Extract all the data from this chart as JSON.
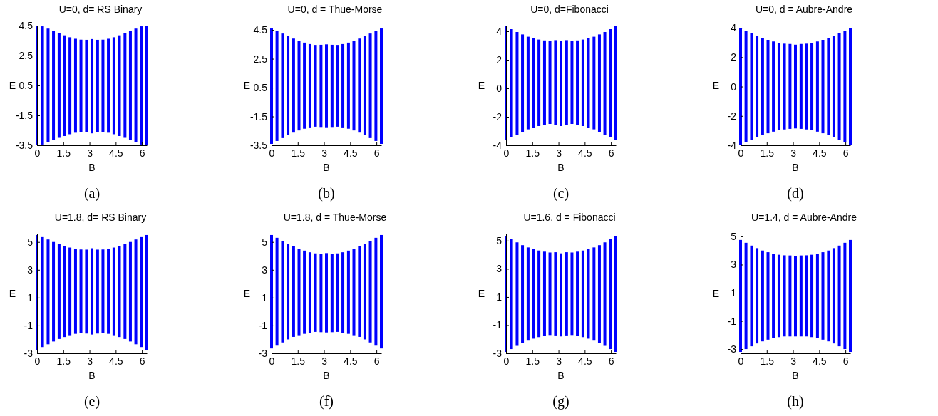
{
  "chart_data": [
    {
      "type": "bar",
      "title": "U=0, d= RS Binary",
      "xlabel": "B",
      "ylabel": "E",
      "annotations": [
        "(a)"
      ],
      "x": [
        0,
        0.31,
        0.63,
        0.94,
        1.26,
        1.57,
        1.88,
        2.2,
        2.51,
        2.83,
        3.14,
        3.46,
        3.77,
        4.08,
        4.4,
        4.71,
        5.03,
        5.34,
        5.65,
        5.97,
        6.28
      ],
      "xlim": [
        0,
        6.28
      ],
      "xticks": [
        0,
        1.5,
        3,
        4.5,
        6
      ],
      "ylim": [
        -3.5,
        4.5
      ],
      "yticks": [
        -3.5,
        -1.5,
        0.5,
        2.5,
        4.5
      ],
      "series": [
        {
          "color": "#0000ff",
          "values": [
            8.0,
            7.9,
            7.6,
            7.3,
            7.0,
            6.73,
            6.48,
            6.28,
            6.16,
            6.17,
            6.3,
            6.17,
            6.16,
            6.28,
            6.48,
            6.73,
            7.0,
            7.3,
            7.6,
            7.9,
            8.0
          ],
          "base": [
            -3.5,
            -3.45,
            -3.3,
            -3.15,
            -3.0,
            -2.88,
            -2.76,
            -2.66,
            -2.6,
            -2.62,
            -2.7,
            -2.62,
            -2.6,
            -2.66,
            -2.76,
            -2.88,
            -3.0,
            -3.15,
            -3.3,
            -3.45,
            -3.5
          ]
        }
      ]
    },
    {
      "type": "bar",
      "title": "U=0, d = Thue-Morse",
      "xlabel": "B",
      "ylabel": "E",
      "annotations": [
        "(b)"
      ],
      "x": [
        0,
        0.31,
        0.63,
        0.94,
        1.26,
        1.57,
        1.88,
        2.2,
        2.51,
        2.83,
        3.14,
        3.46,
        3.77,
        4.08,
        4.4,
        4.71,
        5.03,
        5.34,
        5.65,
        5.97,
        6.28
      ],
      "xlim": [
        0,
        6.28
      ],
      "xticks": [
        0,
        1.5,
        3,
        4.5,
        6
      ],
      "ylim": [
        -3.5,
        4.8
      ],
      "yticks": [
        -3.5,
        -1.5,
        0.5,
        2.5,
        4.5
      ],
      "series": [
        {
          "color": "#0000ff",
          "values": [
            8.0,
            7.65,
            7.25,
            6.87,
            6.52,
            6.22,
            5.97,
            5.78,
            5.67,
            5.7,
            5.75,
            5.7,
            5.67,
            5.78,
            5.97,
            6.22,
            6.52,
            6.87,
            7.25,
            7.65,
            8.0
          ],
          "base": [
            -3.4,
            -3.2,
            -3.0,
            -2.8,
            -2.62,
            -2.47,
            -2.35,
            -2.26,
            -2.21,
            -2.23,
            -2.25,
            -2.23,
            -2.21,
            -2.26,
            -2.35,
            -2.47,
            -2.62,
            -2.8,
            -3.0,
            -3.2,
            -3.4
          ]
        }
      ]
    },
    {
      "type": "bar",
      "title": "U=0, d=Fibonacci",
      "xlabel": "B",
      "ylabel": "E",
      "annotations": [
        "(c)"
      ],
      "x": [
        0,
        0.31,
        0.63,
        0.94,
        1.26,
        1.57,
        1.88,
        2.2,
        2.51,
        2.83,
        3.14,
        3.46,
        3.77,
        4.08,
        4.4,
        4.71,
        5.03,
        5.34,
        5.65,
        5.97,
        6.28
      ],
      "xlim": [
        0,
        6.28
      ],
      "xticks": [
        0,
        1.5,
        3,
        4.5,
        6
      ],
      "ylim": [
        -4,
        4.4
      ],
      "yticks": [
        -4,
        -2,
        0,
        2,
        4
      ],
      "series": [
        {
          "color": "#0000ff",
          "values": [
            8.0,
            7.6,
            7.2,
            6.83,
            6.5,
            6.25,
            6.07,
            5.92,
            5.85,
            5.95,
            5.95,
            5.95,
            5.85,
            5.92,
            6.07,
            6.25,
            6.5,
            6.83,
            7.2,
            7.6,
            8.0
          ],
          "base": [
            -3.65,
            -3.45,
            -3.25,
            -3.05,
            -2.88,
            -2.75,
            -2.65,
            -2.56,
            -2.5,
            -2.57,
            -2.65,
            -2.57,
            -2.5,
            -2.56,
            -2.65,
            -2.75,
            -2.88,
            -3.05,
            -3.25,
            -3.45,
            -3.65
          ]
        }
      ]
    },
    {
      "type": "bar",
      "title": "U=0, d = Aubre-Andre",
      "xlabel": "B",
      "ylabel": "E",
      "annotations": [
        "(d)"
      ],
      "x": [
        0,
        0.31,
        0.63,
        0.94,
        1.26,
        1.57,
        1.88,
        2.2,
        2.51,
        2.83,
        3.14,
        3.46,
        3.77,
        4.08,
        4.4,
        4.71,
        5.03,
        5.34,
        5.65,
        5.97,
        6.28
      ],
      "xlim": [
        0,
        6.28
      ],
      "xticks": [
        0,
        1.5,
        3,
        4.5,
        6
      ],
      "ylim": [
        -4,
        4.15
      ],
      "yticks": [
        -4,
        -2,
        0,
        2,
        4
      ],
      "series": [
        {
          "color": "#0000ff",
          "values": [
            8.0,
            7.6,
            7.24,
            6.9,
            6.6,
            6.36,
            6.14,
            5.96,
            5.84,
            5.78,
            5.7,
            5.78,
            5.84,
            5.96,
            6.14,
            6.36,
            6.6,
            6.9,
            7.24,
            7.6,
            8.0
          ],
          "base": [
            -4.0,
            -3.8,
            -3.62,
            -3.45,
            -3.3,
            -3.18,
            -3.07,
            -2.98,
            -2.92,
            -2.88,
            -2.85,
            -2.88,
            -2.92,
            -2.98,
            -3.07,
            -3.18,
            -3.3,
            -3.45,
            -3.62,
            -3.8,
            -4.0
          ]
        }
      ]
    },
    {
      "type": "bar",
      "title": "U=1.8, d= RS Binary",
      "xlabel": "B",
      "ylabel": "E",
      "annotations": [
        "(e)"
      ],
      "x": [
        0,
        0.31,
        0.63,
        0.94,
        1.26,
        1.57,
        1.88,
        2.2,
        2.51,
        2.83,
        3.14,
        3.46,
        3.77,
        4.08,
        4.4,
        4.71,
        5.03,
        5.34,
        5.65,
        5.97,
        6.28
      ],
      "xlim": [
        0,
        6.28
      ],
      "xticks": [
        0,
        1.5,
        3,
        4.5,
        6
      ],
      "ylim": [
        -3,
        5.6
      ],
      "yticks": [
        -3,
        -1,
        1,
        3,
        5
      ],
      "series": [
        {
          "color": "#0000ff",
          "values": [
            8.25,
            7.9,
            7.53,
            7.15,
            6.82,
            6.53,
            6.3,
            6.1,
            6.01,
            6.03,
            6.2,
            6.03,
            6.01,
            6.1,
            6.3,
            6.53,
            6.82,
            7.15,
            7.53,
            7.9,
            8.25
          ],
          "base": [
            -2.75,
            -2.55,
            -2.35,
            -2.15,
            -1.97,
            -1.83,
            -1.7,
            -1.6,
            -1.55,
            -1.58,
            -1.65,
            -1.58,
            -1.55,
            -1.6,
            -1.7,
            -1.83,
            -1.97,
            -2.15,
            -2.35,
            -2.55,
            -2.75
          ]
        }
      ]
    },
    {
      "type": "bar",
      "title": "U=1.8, d = Thue-Morse",
      "xlabel": "B",
      "ylabel": "E",
      "annotations": [
        "(f)"
      ],
      "x": [
        0,
        0.31,
        0.63,
        0.94,
        1.26,
        1.57,
        1.88,
        2.2,
        2.51,
        2.83,
        3.14,
        3.46,
        3.77,
        4.08,
        4.4,
        4.71,
        5.03,
        5.34,
        5.65,
        5.97,
        6.28
      ],
      "xlim": [
        0,
        6.28
      ],
      "xticks": [
        0,
        1.5,
        3,
        4.5,
        6
      ],
      "ylim": [
        -3,
        5.6
      ],
      "yticks": [
        -3,
        -1,
        1,
        3,
        5
      ],
      "series": [
        {
          "color": "#0000ff",
          "values": [
            8.15,
            7.75,
            7.3,
            6.87,
            6.5,
            6.22,
            5.98,
            5.78,
            5.64,
            5.63,
            5.7,
            5.63,
            5.64,
            5.78,
            5.98,
            6.22,
            6.5,
            6.87,
            7.3,
            7.75,
            8.15
          ],
          "base": [
            -2.65,
            -2.45,
            -2.22,
            -2.0,
            -1.82,
            -1.7,
            -1.6,
            -1.52,
            -1.46,
            -1.48,
            -1.5,
            -1.48,
            -1.46,
            -1.52,
            -1.6,
            -1.7,
            -1.82,
            -2.0,
            -2.22,
            -2.45,
            -2.65
          ]
        }
      ]
    },
    {
      "type": "bar",
      "title": "U=1.6, d = Fibonacci",
      "xlabel": "B",
      "ylabel": "E",
      "annotations": [
        "(g)"
      ],
      "x": [
        0,
        0.31,
        0.63,
        0.94,
        1.26,
        1.57,
        1.88,
        2.2,
        2.51,
        2.83,
        3.14,
        3.46,
        3.77,
        4.08,
        4.4,
        4.71,
        5.03,
        5.34,
        5.65,
        5.97,
        6.28
      ],
      "xlim": [
        0,
        6.28
      ],
      "xticks": [
        0,
        1.5,
        3,
        4.5,
        6
      ],
      "ylim": [
        -3,
        5.5
      ],
      "yticks": [
        -3,
        -1,
        1,
        3,
        5
      ],
      "series": [
        {
          "color": "#0000ff",
          "values": [
            8.2,
            7.8,
            7.35,
            6.95,
            6.62,
            6.36,
            6.15,
            5.99,
            5.86,
            5.91,
            5.9,
            5.91,
            5.86,
            5.99,
            6.15,
            6.36,
            6.62,
            6.95,
            7.35,
            7.8,
            8.2
          ],
          "base": [
            -2.9,
            -2.7,
            -2.47,
            -2.27,
            -2.1,
            -1.96,
            -1.85,
            -1.77,
            -1.7,
            -1.73,
            -1.8,
            -1.73,
            -1.7,
            -1.77,
            -1.85,
            -1.96,
            -2.1,
            -2.27,
            -2.47,
            -2.7,
            -2.9
          ]
        }
      ]
    },
    {
      "type": "bar",
      "title": "U=1.4, d = Aubre-Andre",
      "xlabel": "B",
      "ylabel": "E",
      "annotations": [
        "(h)"
      ],
      "x": [
        0,
        0.31,
        0.63,
        0.94,
        1.26,
        1.57,
        1.88,
        2.2,
        2.51,
        2.83,
        3.14,
        3.46,
        3.77,
        4.08,
        4.4,
        4.71,
        5.03,
        5.34,
        5.65,
        5.97,
        6.28
      ],
      "xlim": [
        0,
        6.28
      ],
      "xticks": [
        0,
        1.5,
        3,
        4.5,
        6
      ],
      "ylim": [
        -3.3,
        5.2
      ],
      "yticks": [
        -3,
        -1,
        1,
        3,
        5
      ],
      "series": [
        {
          "color": "#0000ff",
          "values": [
            7.95,
            7.55,
            7.15,
            6.77,
            6.45,
            6.21,
            6.01,
            5.85,
            5.76,
            5.75,
            5.7,
            5.75,
            5.76,
            5.85,
            6.01,
            6.21,
            6.45,
            6.77,
            7.15,
            7.55,
            7.95
          ],
          "base": [
            -3.2,
            -3.0,
            -2.8,
            -2.6,
            -2.45,
            -2.33,
            -2.23,
            -2.15,
            -2.1,
            -2.1,
            -2.1,
            -2.1,
            -2.1,
            -2.15,
            -2.23,
            -2.33,
            -2.45,
            -2.6,
            -2.8,
            -3.0,
            -3.2
          ]
        }
      ]
    }
  ]
}
